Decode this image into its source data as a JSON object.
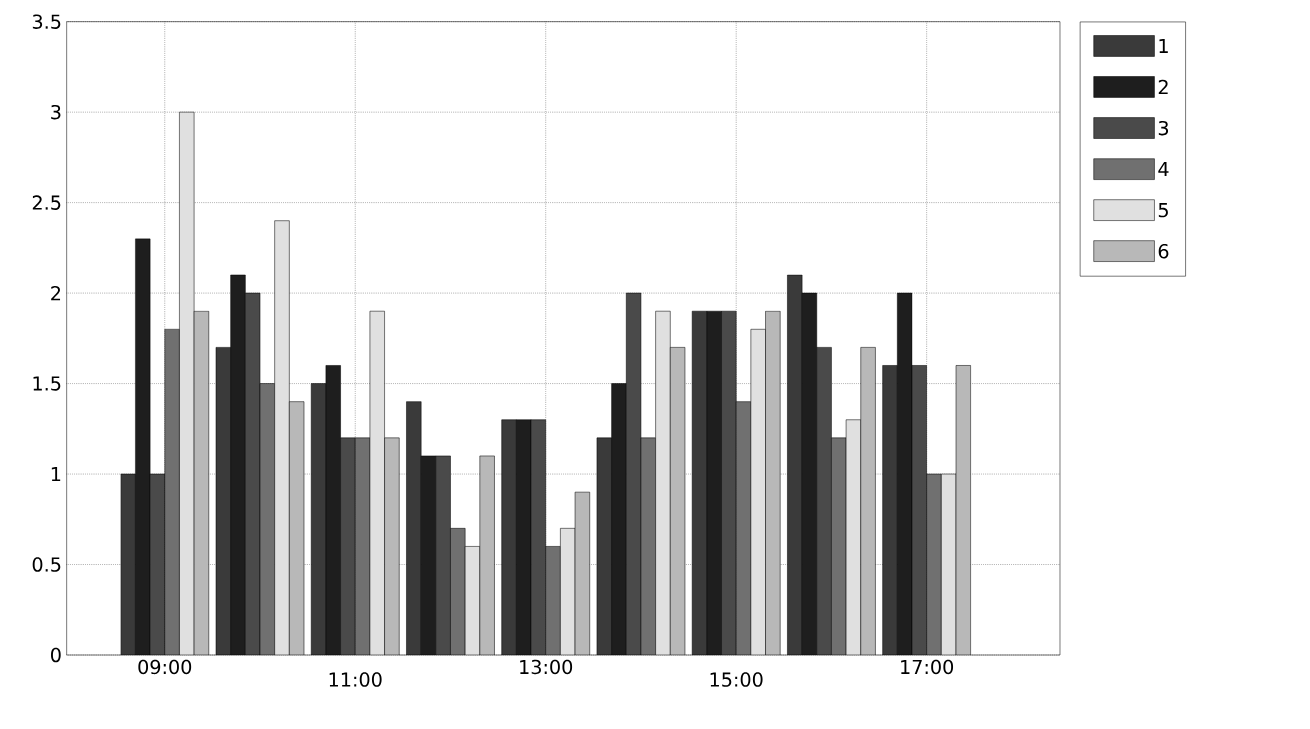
{
  "chart_data": {
    "type": "bar",
    "categories": [
      "09:00",
      null,
      "11:00",
      null,
      "13:00",
      null,
      "15:00",
      null,
      "17:00"
    ],
    "series": [
      {
        "name": "1",
        "color": "#3a3a3a",
        "values": [
          1.0,
          1.7,
          1.5,
          1.4,
          1.3,
          1.2,
          1.9,
          2.1,
          1.6
        ]
      },
      {
        "name": "2",
        "color": "#1e1e1e",
        "values": [
          2.3,
          2.1,
          1.6,
          1.1,
          1.3,
          1.5,
          1.9,
          2.0,
          2.0
        ]
      },
      {
        "name": "3",
        "color": "#4a4a4a",
        "values": [
          1.0,
          2.0,
          1.2,
          1.1,
          1.3,
          2.0,
          1.9,
          1.7,
          1.6
        ]
      },
      {
        "name": "4",
        "color": "#707070",
        "values": [
          1.8,
          1.5,
          1.2,
          0.7,
          0.6,
          1.2,
          1.4,
          1.2,
          1.0
        ]
      },
      {
        "name": "5",
        "color": "#e0e0e0",
        "values": [
          3.0,
          2.4,
          1.9,
          0.6,
          0.7,
          1.9,
          1.8,
          1.3,
          1.0
        ]
      },
      {
        "name": "6",
        "color": "#b8b8b8",
        "values": [
          1.9,
          1.4,
          1.2,
          1.1,
          0.9,
          1.7,
          1.9,
          1.7,
          1.6
        ]
      }
    ],
    "ylim": [
      0,
      3.5
    ],
    "yticks": [
      0,
      0.5,
      1,
      1.5,
      2,
      2.5,
      3,
      3.5
    ],
    "grid": true,
    "legend": "right"
  }
}
